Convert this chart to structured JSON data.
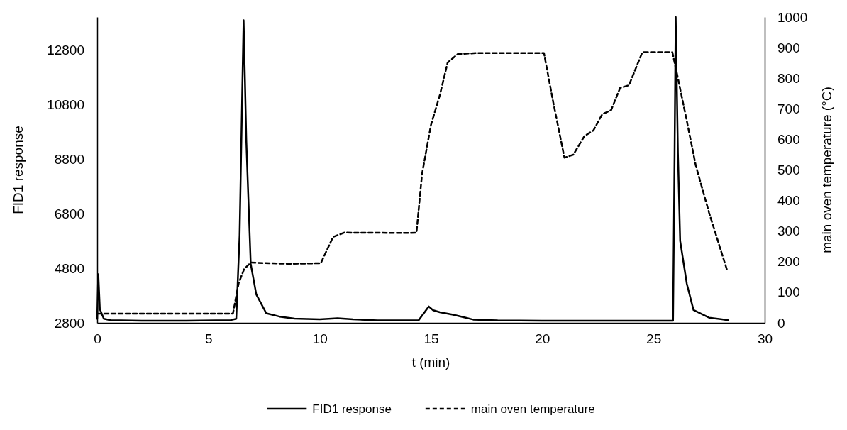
{
  "chart_data": {
    "type": "line",
    "xlabel": "t (min)",
    "ylabel": "FID1 response",
    "y2label": "main oven temperature (°C)",
    "xlim": [
      0,
      30
    ],
    "xticks": [
      0,
      5,
      10,
      15,
      20,
      25,
      30
    ],
    "ylim": [
      2800,
      14000
    ],
    "yticks": [
      2800,
      4800,
      6800,
      8800,
      10800,
      12800
    ],
    "y2lim": [
      0,
      1000
    ],
    "y2ticks": [
      0,
      100,
      200,
      300,
      400,
      500,
      600,
      700,
      800,
      900,
      1000
    ],
    "grid": false,
    "legend": "bottom",
    "marker": "none",
    "series": [
      {
        "name": "FID1 response",
        "color": "#000000",
        "line_style": "solid",
        "x": [
          0,
          0.05,
          0.12,
          0.3,
          0.6,
          2,
          4,
          6,
          6.25,
          6.4,
          6.58,
          6.7,
          6.9,
          7.15,
          7.6,
          8.2,
          8.87,
          10,
          10.8,
          11.5,
          12.6,
          14.45,
          14.9,
          15.1,
          15.4,
          16,
          16.5,
          16.9,
          18,
          20,
          22,
          24,
          25.88,
          25.95,
          26.0,
          26.1,
          26.2,
          26.5,
          26.8,
          27.5,
          28.35
        ],
        "values": [
          2950,
          4580,
          3300,
          2950,
          2900,
          2880,
          2880,
          2900,
          2950,
          6000,
          13880,
          9500,
          4960,
          3843,
          3150,
          3030,
          2956,
          2930,
          2970,
          2930,
          2890,
          2900,
          3400,
          3260,
          3190,
          3100,
          3000,
          2920,
          2890,
          2880,
          2880,
          2880,
          2880,
          9000,
          14000,
          9000,
          5800,
          4230,
          3270,
          2990,
          2900
        ]
      },
      {
        "name": "main oven temperature",
        "color": "#000000",
        "line_style": "dashed",
        "axis": "y2",
        "x": [
          0,
          3,
          6.1,
          6.36,
          6.6,
          6.9,
          8.6,
          10.05,
          10.6,
          11.1,
          14.0,
          14.35,
          14.6,
          15.0,
          15.4,
          15.75,
          16.2,
          17,
          20.08,
          20.5,
          21.0,
          21.4,
          21.9,
          22.3,
          22.7,
          23.1,
          23.5,
          23.9,
          24.5,
          25.85,
          26.1,
          26.5,
          26.9,
          27.5,
          28.3
        ],
        "values": [
          30,
          30,
          30,
          130,
          175,
          197,
          193,
          195,
          281,
          295,
          294,
          295,
          487,
          647,
          745,
          851,
          879,
          882,
          882,
          720,
          540,
          550,
          611,
          629,
          682,
          696,
          768,
          777,
          885,
          885,
          800,
          660,
          515,
          360,
          174
        ]
      }
    ]
  }
}
